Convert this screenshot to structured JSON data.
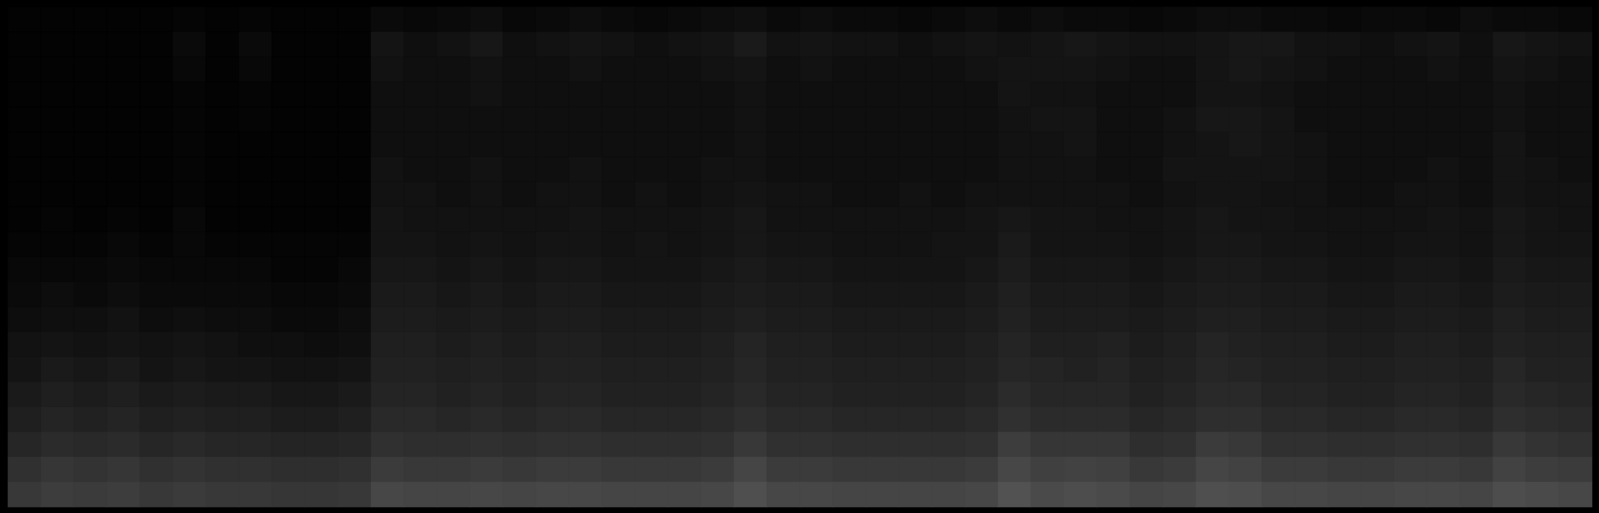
{
  "chart_data": {
    "type": "heatmap",
    "tick_labels": false,
    "zlim": [
      0,
      100
    ],
    "cells": [
      [
        1,
        1,
        1,
        1,
        1,
        2,
        1,
        2,
        1,
        1,
        1,
        4,
        3,
        4,
        5,
        3,
        4,
        5,
        4,
        3,
        4,
        5,
        6,
        4,
        5,
        4,
        4,
        3,
        4,
        5,
        4,
        5,
        4,
        4,
        3,
        4,
        5,
        5,
        4,
        4,
        3,
        4,
        4,
        3,
        5,
        4,
        4,
        3
      ],
      [
        1,
        1,
        1,
        1,
        1,
        4,
        1,
        4,
        1,
        1,
        1,
        8,
        6,
        7,
        9,
        6,
        7,
        8,
        7,
        6,
        7,
        8,
        10,
        7,
        8,
        7,
        7,
        6,
        7,
        8,
        7,
        8,
        9,
        8,
        7,
        7,
        8,
        9,
        9,
        7,
        7,
        6,
        7,
        8,
        6,
        9,
        8,
        7
      ],
      [
        1,
        1,
        1,
        1,
        1,
        3,
        1,
        3,
        1,
        1,
        1,
        7,
        6,
        6,
        7,
        6,
        6,
        7,
        6,
        6,
        6,
        7,
        8,
        6,
        7,
        6,
        6,
        6,
        6,
        7,
        8,
        8,
        8,
        7,
        6,
        6,
        8,
        9,
        8,
        7,
        6,
        6,
        6,
        7,
        6,
        8,
        7,
        6
      ],
      [
        1,
        1,
        1,
        1,
        1,
        2,
        1,
        2,
        1,
        1,
        1,
        6,
        6,
        6,
        7,
        6,
        6,
        6,
        6,
        6,
        6,
        6,
        7,
        6,
        6,
        6,
        6,
        6,
        6,
        6,
        8,
        7,
        7,
        6,
        6,
        6,
        8,
        8,
        7,
        6,
        6,
        6,
        6,
        6,
        6,
        7,
        6,
        6
      ],
      [
        1,
        1,
        1,
        1,
        1,
        2,
        1,
        2,
        1,
        1,
        1,
        6,
        6,
        6,
        6,
        6,
        6,
        6,
        6,
        6,
        6,
        6,
        7,
        6,
        6,
        6,
        6,
        6,
        6,
        6,
        7,
        8,
        8,
        6,
        6,
        7,
        9,
        9,
        8,
        6,
        6,
        6,
        6,
        6,
        6,
        7,
        6,
        6
      ],
      [
        1,
        1,
        1,
        1,
        1,
        2,
        1,
        1,
        1,
        1,
        1,
        6,
        6,
        6,
        6,
        6,
        6,
        6,
        6,
        6,
        6,
        6,
        7,
        6,
        6,
        6,
        6,
        6,
        6,
        6,
        7,
        7,
        8,
        6,
        6,
        7,
        8,
        9,
        8,
        7,
        6,
        6,
        6,
        6,
        6,
        8,
        6,
        6
      ],
      [
        1,
        1,
        1,
        1,
        1,
        2,
        1,
        1,
        1,
        1,
        1,
        7,
        6,
        6,
        7,
        6,
        6,
        7,
        6,
        6,
        6,
        7,
        7,
        6,
        6,
        6,
        6,
        6,
        6,
        6,
        7,
        7,
        7,
        6,
        6,
        8,
        8,
        8,
        8,
        7,
        6,
        6,
        6,
        7,
        6,
        8,
        7,
        6
      ],
      [
        1,
        1,
        1,
        1,
        1,
        2,
        1,
        1,
        1,
        1,
        1,
        7,
        7,
        6,
        7,
        6,
        7,
        7,
        6,
        7,
        6,
        7,
        8,
        7,
        7,
        6,
        6,
        7,
        6,
        7,
        7,
        7,
        7,
        7,
        6,
        7,
        8,
        8,
        7,
        7,
        6,
        6,
        7,
        7,
        6,
        8,
        7,
        7
      ],
      [
        1,
        2,
        1,
        2,
        1,
        3,
        1,
        1,
        1,
        1,
        1,
        8,
        7,
        7,
        7,
        7,
        7,
        8,
        7,
        7,
        7,
        8,
        9,
        7,
        7,
        7,
        7,
        7,
        7,
        8,
        9,
        8,
        8,
        7,
        7,
        8,
        9,
        8,
        8,
        7,
        7,
        7,
        7,
        8,
        7,
        9,
        8,
        7
      ],
      [
        2,
        2,
        2,
        3,
        2,
        3,
        2,
        2,
        2,
        2,
        2,
        8,
        8,
        7,
        8,
        7,
        8,
        8,
        7,
        8,
        7,
        8,
        9,
        8,
        8,
        7,
        7,
        7,
        8,
        8,
        10,
        8,
        8,
        8,
        7,
        8,
        9,
        9,
        8,
        8,
        7,
        7,
        8,
        8,
        7,
        9,
        8,
        8
      ],
      [
        3,
        3,
        3,
        4,
        3,
        3,
        3,
        3,
        2,
        2,
        3,
        9,
        9,
        8,
        9,
        8,
        9,
        9,
        8,
        8,
        8,
        9,
        10,
        9,
        9,
        8,
        8,
        8,
        8,
        9,
        11,
        9,
        9,
        9,
        8,
        9,
        10,
        10,
        9,
        9,
        8,
        8,
        9,
        9,
        8,
        10,
        9,
        9
      ],
      [
        4,
        5,
        4,
        5,
        4,
        4,
        4,
        4,
        3,
        3,
        4,
        10,
        10,
        9,
        10,
        9,
        10,
        10,
        9,
        9,
        9,
        10,
        11,
        10,
        10,
        9,
        9,
        9,
        9,
        10,
        12,
        10,
        10,
        10,
        9,
        10,
        11,
        11,
        10,
        10,
        9,
        9,
        10,
        10,
        9,
        11,
        10,
        10
      ],
      [
        5,
        6,
        6,
        7,
        5,
        6,
        5,
        5,
        4,
        4,
        5,
        11,
        11,
        10,
        11,
        10,
        11,
        11,
        10,
        10,
        10,
        11,
        12,
        11,
        11,
        10,
        10,
        10,
        10,
        11,
        13,
        11,
        11,
        11,
        10,
        11,
        12,
        12,
        11,
        11,
        10,
        10,
        11,
        11,
        10,
        12,
        11,
        11
      ],
      [
        7,
        8,
        7,
        8,
        7,
        8,
        7,
        6,
        6,
        5,
        6,
        12,
        12,
        11,
        12,
        11,
        12,
        12,
        11,
        11,
        11,
        12,
        14,
        12,
        12,
        11,
        11,
        11,
        11,
        12,
        14,
        12,
        12,
        13,
        11,
        12,
        14,
        13,
        12,
        12,
        11,
        11,
        12,
        12,
        11,
        13,
        12,
        12
      ],
      [
        8,
        10,
        9,
        10,
        8,
        9,
        8,
        8,
        7,
        7,
        8,
        13,
        13,
        12,
        13,
        12,
        13,
        13,
        12,
        12,
        12,
        13,
        15,
        13,
        13,
        12,
        12,
        12,
        12,
        13,
        15,
        14,
        13,
        14,
        12,
        13,
        15,
        14,
        13,
        13,
        12,
        12,
        13,
        13,
        12,
        15,
        13,
        13
      ],
      [
        10,
        12,
        11,
        12,
        10,
        11,
        10,
        10,
        9,
        9,
        10,
        14,
        14,
        13,
        14,
        13,
        14,
        14,
        13,
        13,
        13,
        14,
        16,
        14,
        14,
        13,
        13,
        13,
        13,
        14,
        17,
        15,
        15,
        15,
        13,
        14,
        16,
        16,
        14,
        14,
        13,
        13,
        14,
        14,
        13,
        16,
        15,
        14
      ],
      [
        12,
        14,
        13,
        14,
        12,
        13,
        12,
        12,
        11,
        11,
        12,
        16,
        16,
        15,
        16,
        15,
        16,
        16,
        15,
        15,
        15,
        16,
        18,
        16,
        16,
        15,
        15,
        15,
        15,
        16,
        19,
        17,
        17,
        17,
        15,
        16,
        18,
        18,
        16,
        16,
        15,
        15,
        16,
        16,
        15,
        18,
        17,
        16
      ],
      [
        15,
        17,
        16,
        17,
        15,
        16,
        15,
        15,
        14,
        14,
        15,
        19,
        18,
        18,
        19,
        18,
        19,
        19,
        18,
        18,
        18,
        19,
        22,
        19,
        19,
        18,
        18,
        18,
        18,
        19,
        24,
        21,
        21,
        21,
        18,
        19,
        23,
        22,
        19,
        19,
        18,
        18,
        19,
        19,
        18,
        22,
        20,
        19
      ],
      [
        19,
        21,
        20,
        21,
        19,
        20,
        19,
        19,
        18,
        18,
        19,
        23,
        22,
        22,
        23,
        22,
        23,
        23,
        22,
        22,
        22,
        23,
        27,
        23,
        23,
        22,
        22,
        22,
        22,
        23,
        28,
        25,
        26,
        25,
        22,
        23,
        27,
        26,
        23,
        23,
        22,
        22,
        23,
        23,
        22,
        26,
        24,
        23
      ],
      [
        22,
        24,
        23,
        24,
        22,
        23,
        22,
        22,
        21,
        21,
        22,
        28,
        27,
        27,
        28,
        27,
        28,
        28,
        27,
        27,
        27,
        28,
        31,
        28,
        28,
        27,
        27,
        27,
        27,
        28,
        32,
        29,
        30,
        29,
        27,
        28,
        31,
        30,
        28,
        28,
        27,
        27,
        28,
        28,
        27,
        30,
        29,
        28
      ]
    ]
  }
}
